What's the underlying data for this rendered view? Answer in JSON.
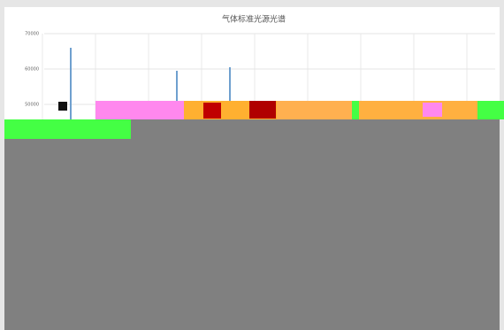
{
  "chart_data": {
    "type": "bar",
    "title": "气体标准光源光谱",
    "categories": [
      null,
      null,
      null,
      null,
      null,
      null,
      null,
      null
    ],
    "values": [
      66000,
      null,
      59500,
      60500,
      null,
      null,
      null,
      null
    ],
    "color": "#6fa0cf",
    "ylim": [
      50000,
      70000
    ],
    "yticks": [
      50000,
      60000,
      70000
    ],
    "grid": true
  }
}
